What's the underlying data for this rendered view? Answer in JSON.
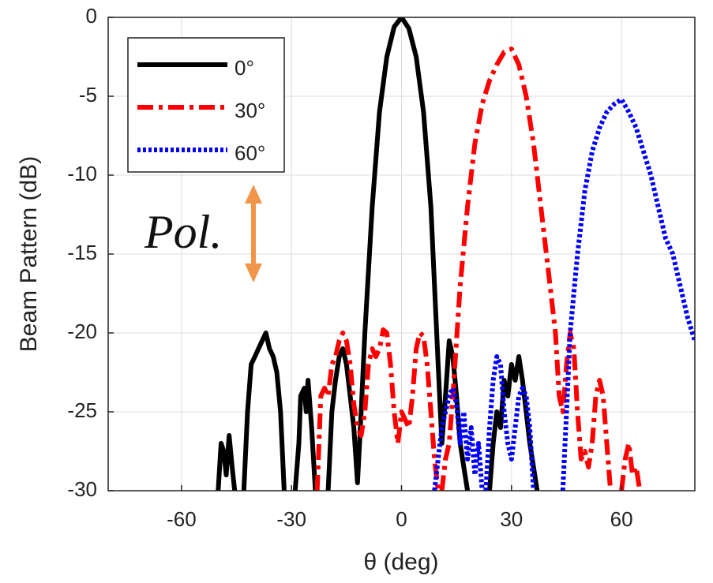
{
  "chart_data": {
    "type": "line",
    "x_label": "θ (deg)",
    "y_label": "Beam Pattern (dB)",
    "annotation": "Pol.",
    "xlim": [
      -80,
      80
    ],
    "xticks": [
      -60,
      -30,
      0,
      30,
      60
    ],
    "ylim": [
      -30,
      0
    ],
    "yticks": [
      0,
      -5,
      -10,
      -15,
      -20,
      -25,
      -30
    ],
    "grid": true,
    "legend": "upper left",
    "series": [
      {
        "name": "0°",
        "color": "#000000",
        "style": "solid",
        "x": [
          -50,
          -49.2,
          -48.5,
          -47.8,
          -47,
          -46.2,
          -45.5,
          -44,
          -43,
          -42,
          -41,
          -40,
          -39,
          -38,
          -37,
          -36,
          -35,
          -34,
          -33,
          -32,
          -30,
          -29,
          -28,
          -27.5,
          -26.5,
          -26,
          -25.5,
          -24.5,
          -23.5,
          -22,
          -20,
          -19,
          -18,
          -17,
          -16,
          -15,
          -14,
          -13,
          -12,
          -11,
          -10,
          -8,
          -6,
          -4,
          -2,
          0,
          2,
          4,
          6,
          8,
          9,
          10,
          11,
          12,
          13,
          14,
          15,
          16,
          17,
          18,
          20,
          24,
          25,
          26,
          27,
          28,
          29,
          30,
          31,
          32,
          33,
          34,
          35,
          36,
          37
        ],
        "values": [
          -30,
          -27,
          -27.5,
          -29,
          -26.5,
          -28.5,
          -30,
          null,
          -30,
          -25,
          -22,
          -21.5,
          -21,
          -20.5,
          -20,
          -21,
          -21.5,
          -22.5,
          -25,
          -30,
          null,
          -30,
          -27,
          -24,
          -23.5,
          -25,
          -23,
          -26,
          -30,
          null,
          -30,
          -25,
          -23,
          -21.5,
          -21,
          -22,
          -24,
          -26,
          -29.5,
          -25,
          -20,
          -12,
          -6,
          -2.5,
          -0.6,
          0,
          -0.7,
          -2.5,
          -6,
          -12,
          -17,
          -22,
          -27,
          -24,
          -20.5,
          -21.5,
          -24,
          -27,
          -28.5,
          -30,
          null,
          -30,
          -27,
          -25,
          -26,
          -23,
          -24,
          -22,
          -23,
          -21.5,
          -23,
          -25,
          -27,
          -28.5,
          -30
        ]
      },
      {
        "name": "30°",
        "color": "#ff0000",
        "style": "dashdot",
        "x": [
          -23,
          -22,
          -21,
          -20,
          -19,
          -18,
          -17,
          -16,
          -15,
          -14,
          -13,
          -12,
          -11,
          -10,
          -9,
          -8,
          -7,
          -6,
          -5,
          -4,
          -3,
          -2,
          -1,
          0,
          1,
          2,
          3,
          4,
          5,
          6,
          7,
          8,
          9,
          10,
          11,
          12,
          13,
          14,
          16,
          18,
          20,
          22,
          24,
          26,
          28,
          30,
          32,
          34,
          36,
          38,
          40,
          42,
          43,
          44,
          45,
          46,
          47,
          48,
          49,
          50,
          51,
          52,
          53,
          54,
          55,
          56,
          57,
          58,
          60,
          61,
          62,
          63,
          64,
          65
        ],
        "values": [
          -30,
          -24,
          -23.5,
          -24,
          -22,
          -21.5,
          -20.5,
          -20,
          -20.5,
          -22,
          -24.5,
          -26,
          -26.5,
          -25,
          -22,
          -21,
          -21.5,
          -21,
          -19.8,
          -20,
          -22,
          -25,
          -27,
          -25,
          -25.5,
          -26,
          -24,
          -21,
          -20,
          -20.2,
          -22,
          -25,
          -28,
          -30,
          -30,
          -28,
          -27,
          -24,
          -17,
          -12,
          -8,
          -5.5,
          -4,
          -3,
          -2.2,
          -2,
          -3,
          -5,
          -8,
          -12,
          -16,
          -20,
          -24,
          -25,
          -22,
          -20,
          -21,
          -25,
          -28,
          -27.5,
          -28.5,
          -27,
          -24,
          -23,
          -24,
          -27,
          -30,
          null,
          -30,
          -28,
          -27,
          -29,
          -28.5,
          -30
        ]
      },
      {
        "name": "60°",
        "color": "#0000ff",
        "style": "dotted",
        "x": [
          9,
          10,
          11,
          12,
          13,
          14,
          15,
          16,
          17,
          18,
          19,
          20,
          21,
          22,
          22.5,
          23,
          24,
          25,
          26,
          27,
          28,
          29,
          30,
          31,
          32,
          33,
          34,
          35,
          36,
          40,
          44,
          45,
          46,
          48,
          50,
          52,
          54,
          56,
          58,
          60,
          62,
          64,
          66,
          68,
          70,
          72,
          74,
          76,
          78,
          80
        ],
        "values": [
          -30,
          -28,
          -26,
          -25,
          -24,
          -23.5,
          -24.5,
          -27,
          -25,
          -28,
          -26,
          -29,
          -27,
          -30,
          null,
          -30,
          -26,
          -23,
          -21.5,
          -22,
          -25,
          -27,
          -28,
          -26,
          -24,
          -23.5,
          -24,
          -26,
          -30,
          null,
          -30,
          -25,
          -20,
          -15,
          -11,
          -8.5,
          -7,
          -6,
          -5.5,
          -5.2,
          -6,
          -7,
          -8.5,
          -10,
          -12,
          -14,
          -15,
          -17,
          -19,
          -20.5
        ]
      }
    ]
  }
}
